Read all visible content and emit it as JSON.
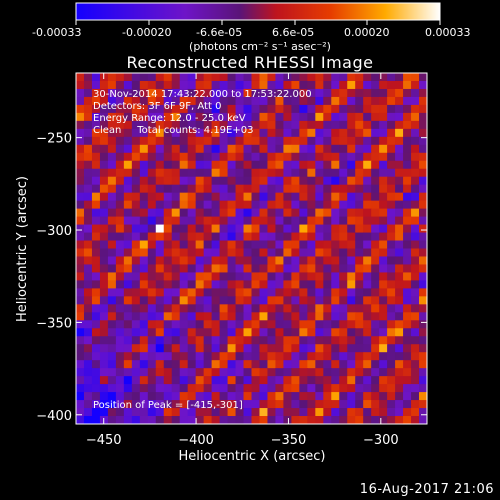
{
  "colorbar": {
    "ticks": [
      "-0.00033",
      "-0.00020",
      "-6.6e-05",
      "6.6e-05",
      "0.00020",
      "0.00033"
    ],
    "units": "(photons cm⁻² s⁻¹ asec⁻²)",
    "range": [
      -0.00033,
      0.00033
    ]
  },
  "chart_data": {
    "type": "heatmap",
    "title": "Reconstructed RHESSI Image",
    "xlabel": "Heliocentric X (arcsec)",
    "ylabel": "Heliocentric Y (arcsec)",
    "xlim": [
      -465,
      -275
    ],
    "ylim": [
      -405,
      -215
    ],
    "xticks": [
      -450,
      -400,
      -350,
      -300
    ],
    "yticks": [
      -250,
      -300,
      -350,
      -400
    ],
    "annotations": [
      "30-Nov-2014 17:43:22.000 to 17:53:22.000",
      "Detectors: 3F 6F 9F, Att 0",
      "Energy Range: 12.0 - 25.0 keV",
      "Clean     Total counts: 4.19E+03"
    ],
    "peak_label": "Position of Peak = [-415,-301]",
    "peak": [
      -415,
      -301
    ]
  },
  "footer": {
    "timestamp": "16-Aug-2017 21:06"
  }
}
